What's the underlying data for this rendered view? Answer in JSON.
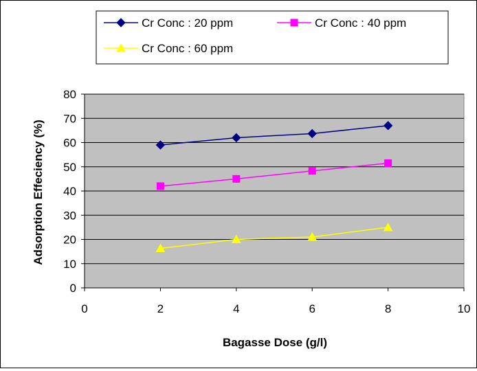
{
  "chart_data": {
    "type": "line",
    "title": "",
    "xlabel": "Bagasse Dose (g/l)",
    "ylabel": "Adsorption Effeciency (%)",
    "xlim": [
      0,
      10
    ],
    "ylim": [
      0,
      80
    ],
    "x_ticks": [
      "0",
      "2",
      "4",
      "6",
      "8",
      "10"
    ],
    "y_ticks": [
      "0",
      "10",
      "20",
      "30",
      "40",
      "50",
      "60",
      "70",
      "80"
    ],
    "grid": "horizontal",
    "plot_background": "#c0c0c0",
    "legend_position": "top",
    "series": [
      {
        "name": "Cr Conc : 20 ppm",
        "color": "#000080",
        "marker": "diamond",
        "x": [
          2,
          4,
          6,
          8
        ],
        "y": [
          59,
          62,
          63.7,
          67
        ]
      },
      {
        "name": "Cr Conc : 40 ppm",
        "color": "#ff00ff",
        "marker": "square",
        "x": [
          2,
          4,
          6,
          8
        ],
        "y": [
          42,
          45,
          48.3,
          51.5
        ]
      },
      {
        "name": "Cr Conc : 60 ppm",
        "color": "#ffff00",
        "marker": "triangle",
        "x": [
          2,
          4,
          6,
          8
        ],
        "y": [
          16.3,
          20,
          21,
          25
        ]
      }
    ]
  }
}
